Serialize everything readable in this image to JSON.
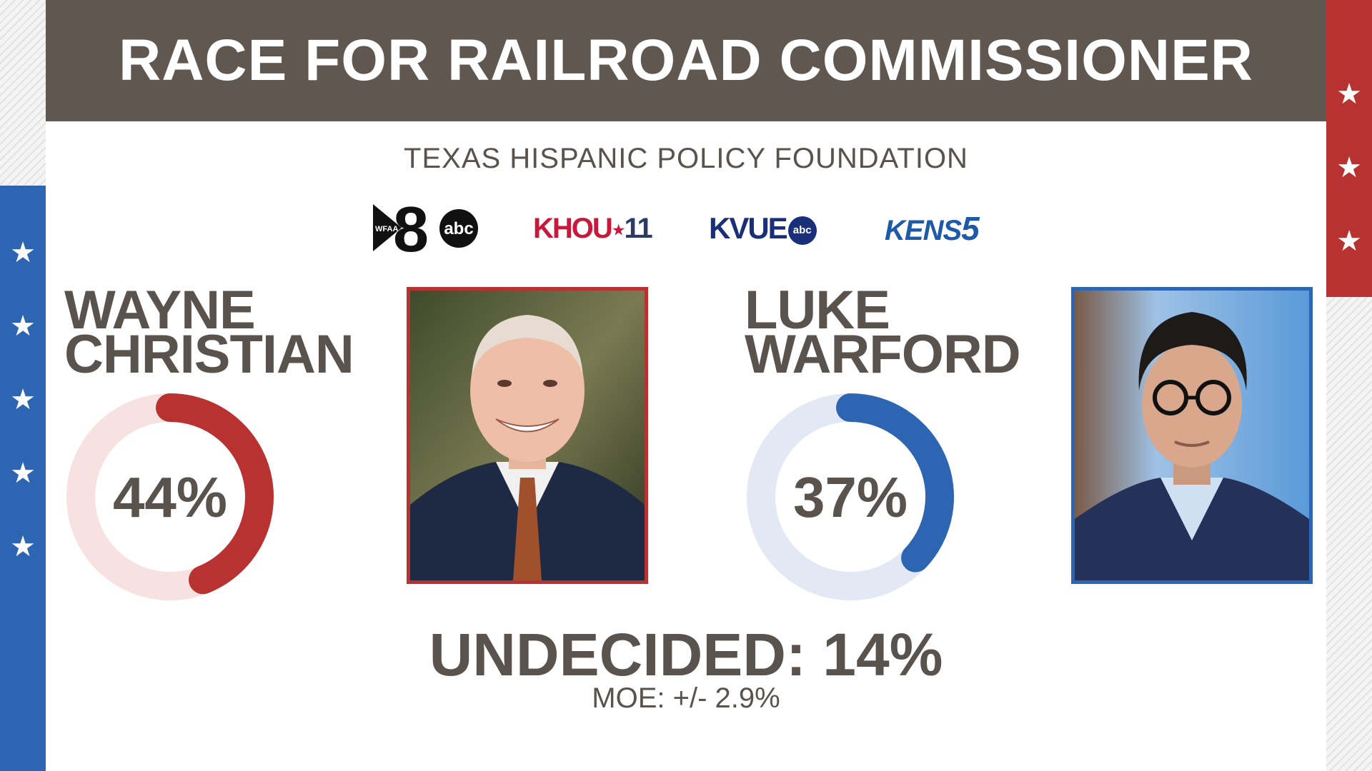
{
  "title": "RACE FOR RAILROAD COMMISSIONER",
  "source": "TEXAS HISPANIC POLICY FOUNDATION",
  "logos": {
    "wfaa": {
      "mark": "WFAA",
      "number": "8",
      "network": "abc"
    },
    "khou": {
      "text": "KHOU",
      "number": "11"
    },
    "kvue": {
      "text": "KVUE",
      "network": "abc"
    },
    "kens": {
      "text": "KENS",
      "number": "5"
    }
  },
  "colors": {
    "header": "#605750",
    "republican": "#b83232",
    "democrat": "#2e65b3",
    "text": "#5a524c"
  },
  "chart_data": {
    "type": "donut",
    "title": "RACE FOR RAILROAD COMMISSIONER",
    "unit": "%",
    "series": [
      {
        "name": "WAYNE CHRISTIAN",
        "value": 44,
        "label": "44%",
        "color": "#b83232",
        "track": "#f7e1e1"
      },
      {
        "name": "LUKE WARFORD",
        "value": 37,
        "label": "37%",
        "color": "#2e65b3",
        "track": "#e2e9f5"
      }
    ],
    "undecided": {
      "label": "UNDECIDED:",
      "value": 14,
      "display": "14%"
    },
    "moe": "MOE: +/- 2.9%"
  },
  "candidates": [
    {
      "first": "WAYNE",
      "last": "CHRISTIAN"
    },
    {
      "first": "LUKE",
      "last": "WARFORD"
    }
  ]
}
